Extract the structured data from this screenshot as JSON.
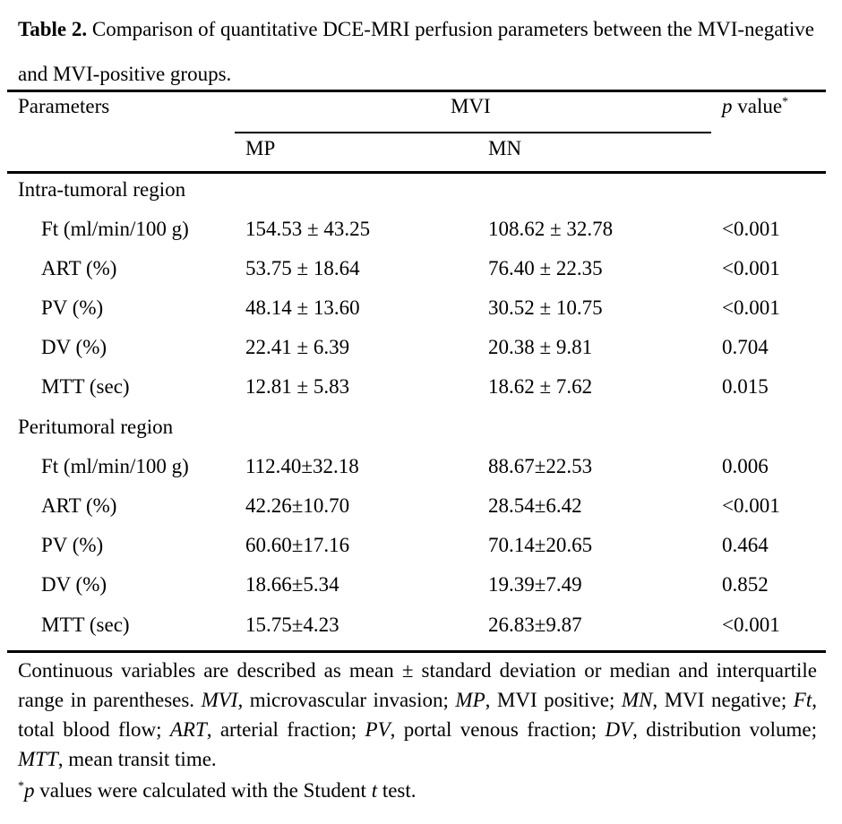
{
  "caption": {
    "label": "Table 2.",
    "text": "Comparison of quantitative DCE-MRI perfusion parameters between the MVI-negative and MVI-positive groups."
  },
  "header": {
    "parameters": "Parameters",
    "group": "MVI",
    "p_value_italic": "p",
    "p_value_text": " value",
    "p_value_sup": "*",
    "col_mp": "MP",
    "col_mn": "MN"
  },
  "sections": [
    {
      "title": "Intra-tumoral region",
      "rows": [
        {
          "param": "Ft (ml/min/100 g)",
          "mp": "154.53 ± 43.25",
          "mn": "108.62 ± 32.78",
          "p": "<0.001"
        },
        {
          "param": "ART (%)",
          "mp": "53.75 ± 18.64",
          "mn": "76.40 ± 22.35",
          "p": "<0.001"
        },
        {
          "param": "PV (%)",
          "mp": "48.14 ± 13.60",
          "mn": "30.52 ± 10.75",
          "p": "<0.001"
        },
        {
          "param": "DV (%)",
          "mp": "22.41 ± 6.39",
          "mn": "20.38 ± 9.81",
          "p": "0.704"
        },
        {
          "param": "MTT (sec)",
          "mp": "12.81 ± 5.83",
          "mn": "18.62 ± 7.62",
          "p": "0.015"
        }
      ]
    },
    {
      "title": "Peritumoral region",
      "rows": [
        {
          "param": "Ft (ml/min/100 g)",
          "mp": "112.40±32.18",
          "mn": "88.67±22.53",
          "p": "0.006"
        },
        {
          "param": "ART (%)",
          "mp": "42.26±10.70",
          "mn": "28.54±6.42",
          "p": "<0.001"
        },
        {
          "param": "PV (%)",
          "mp": "60.60±17.16",
          "mn": "70.14±20.65",
          "p": "0.464"
        },
        {
          "param": "DV (%)",
          "mp": "18.66±5.34",
          "mn": "19.39±7.49",
          "p": "0.852"
        },
        {
          "param": "MTT (sec)",
          "mp": "15.75±4.23",
          "mn": "26.83±9.87",
          "p": "<0.001"
        }
      ]
    }
  ],
  "footnote": {
    "intro": "Continuous variables are described as mean ± standard deviation or median and interquartile range in parentheses. ",
    "defs": [
      {
        "term": "MVI,",
        "desc": " microvascular invasion; "
      },
      {
        "term": "MP",
        "desc": ", MVI positive; "
      },
      {
        "term": "MN",
        "desc": ", MVI negative; "
      },
      {
        "term": "Ft",
        "desc": ", total blood flow; "
      },
      {
        "term": "ART",
        "desc": ", arterial fraction; "
      },
      {
        "term": "PV",
        "desc": ", portal venous fraction; "
      },
      {
        "term": "DV",
        "desc": ", distribution volume; "
      },
      {
        "term": "MTT",
        "desc": ", mean transit time."
      }
    ],
    "stat_sup": "*",
    "stat_p": "p",
    "stat_text1": " values were calculated with the Student ",
    "stat_t": "t",
    "stat_text2": " test."
  }
}
